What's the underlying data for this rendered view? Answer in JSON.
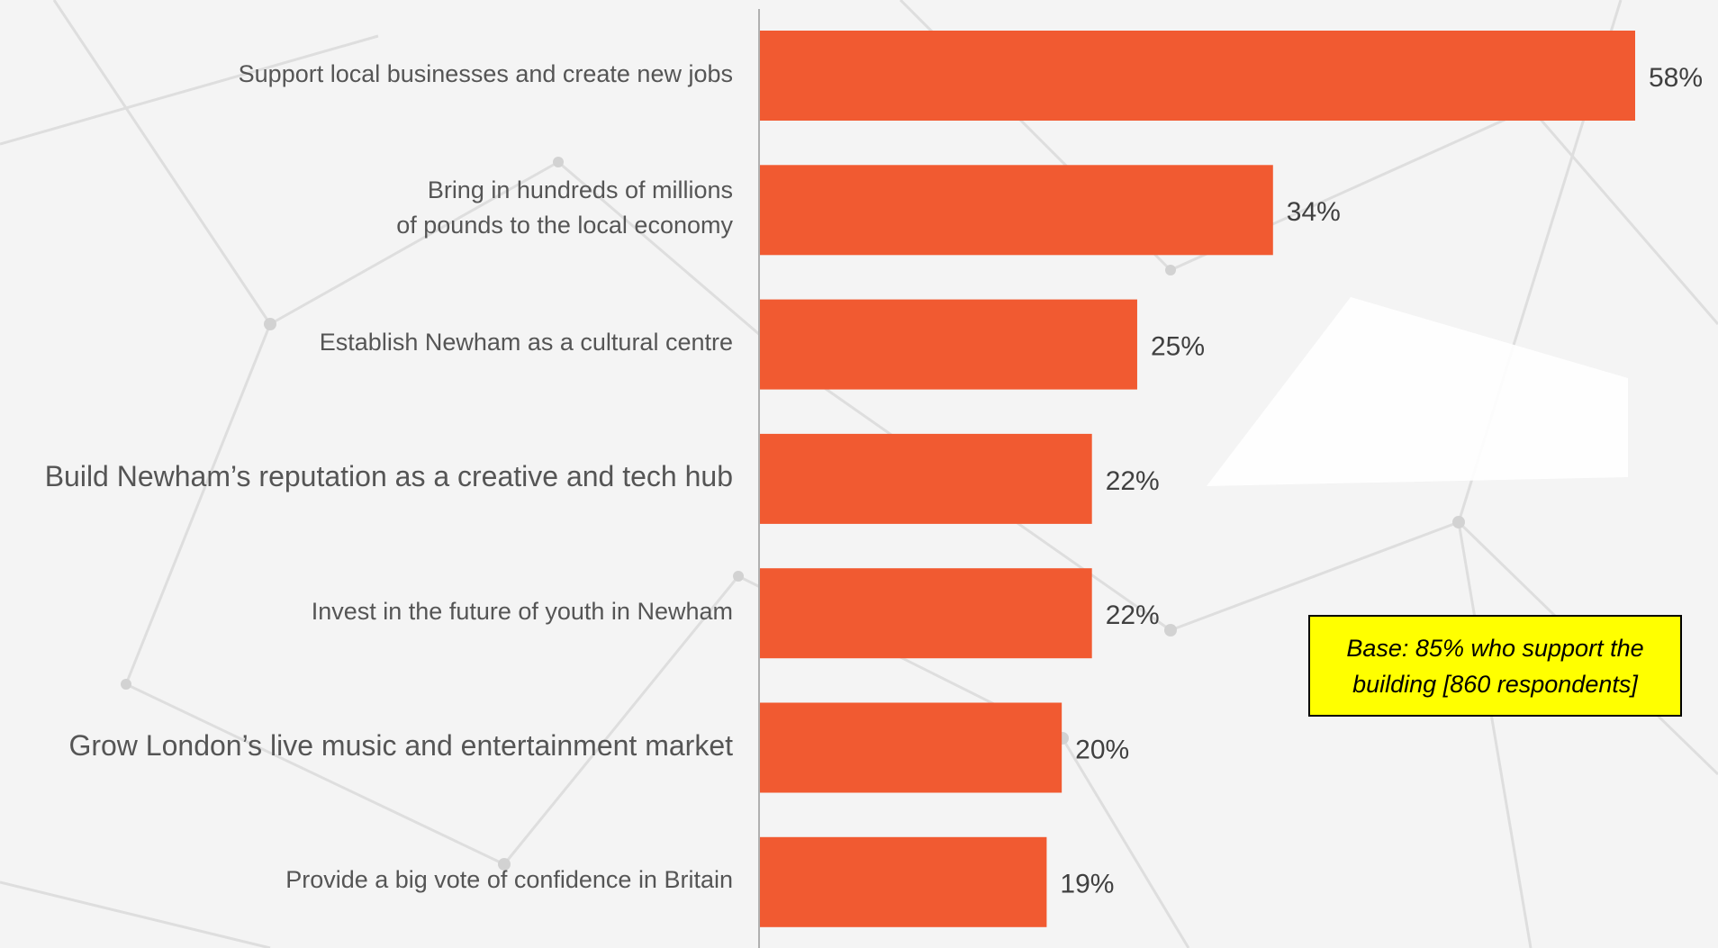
{
  "chart_data": {
    "type": "bar",
    "orientation": "horizontal",
    "categories": [
      "Support local businesses and create new jobs",
      "Bring in hundreds of millions\nof pounds to the local economy",
      "Establish Newham as a cultural centre",
      "Build Newham’s reputation as a creative and tech hub",
      "Invest in the future of youth in Newham",
      "Grow London’s live music and entertainment market",
      "Provide a big vote of confidence in Britain"
    ],
    "values": [
      58,
      34,
      25,
      22,
      22,
      20,
      19
    ],
    "data_labels": [
      "58%",
      "34%",
      "25%",
      "22%",
      "22%",
      "20%",
      "19%"
    ],
    "xlim": [
      0,
      58
    ],
    "grid": false,
    "bar_color": "#f15a31",
    "note": "Base: 85% who support the building [860 respondents]"
  },
  "colors": {
    "bar": "#f15a31",
    "note_background": "#ffff00",
    "label_text": "#555555"
  }
}
